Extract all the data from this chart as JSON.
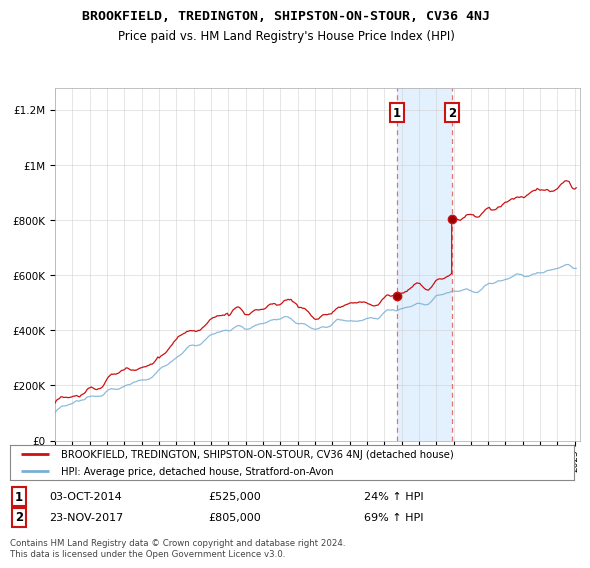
{
  "title": "BROOKFIELD, TREDINGTON, SHIPSTON-ON-STOUR, CV36 4NJ",
  "subtitle": "Price paid vs. HM Land Registry's House Price Index (HPI)",
  "ylabel_ticks": [
    "£0",
    "£200K",
    "£400K",
    "£600K",
    "£800K",
    "£1M",
    "£1.2M"
  ],
  "ytick_values": [
    0,
    200000,
    400000,
    600000,
    800000,
    1000000,
    1200000
  ],
  "ylim": [
    0,
    1280000
  ],
  "xlim_start": 1995.0,
  "xlim_end": 2025.3,
  "hpi_color": "#7aafd4",
  "price_color": "#cc1111",
  "sale1_date": 2014.75,
  "sale1_price": 525000,
  "sale2_date": 2017.9,
  "sale2_price": 805000,
  "shade_color": "#ddeeff",
  "vline_color": "#dd6666",
  "legend_label1": "BROOKFIELD, TREDINGTON, SHIPSTON-ON-STOUR, CV36 4NJ (detached house)",
  "legend_label2": "HPI: Average price, detached house, Stratford-on-Avon",
  "table_row1": [
    "1",
    "03-OCT-2014",
    "£525,000",
    "24% ↑ HPI"
  ],
  "table_row2": [
    "2",
    "23-NOV-2017",
    "£805,000",
    "69% ↑ HPI"
  ],
  "footer": "Contains HM Land Registry data © Crown copyright and database right 2024.\nThis data is licensed under the Open Government Licence v3.0.",
  "background_color": "#ffffff",
  "grid_color": "#cccccc",
  "title_fontsize": 9.5,
  "subtitle_fontsize": 8.5
}
